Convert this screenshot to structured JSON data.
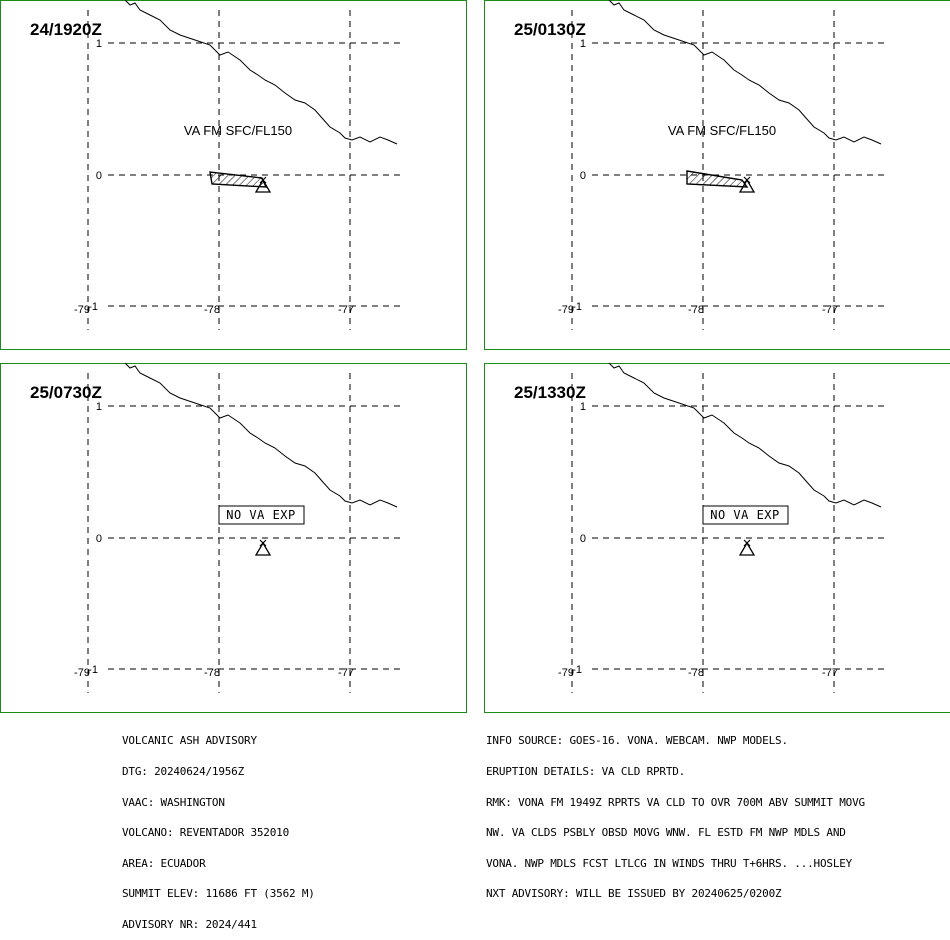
{
  "panels": [
    {
      "time": "24/1920Z",
      "label": "VA FM SFC/FL150",
      "type": "ash"
    },
    {
      "time": "25/0130Z",
      "label": "VA FM SFC/FL150",
      "type": "ash"
    },
    {
      "time": "25/0730Z",
      "label": "NO VA EXP",
      "type": "none"
    },
    {
      "time": "25/1330Z",
      "label": "NO VA EXP",
      "type": "none"
    }
  ],
  "axes": {
    "lon_ticks": [
      "-79",
      "-78",
      "-77"
    ],
    "lat_ticks": [
      "1",
      "0",
      "-1"
    ]
  },
  "advisory": {
    "lines": [
      "VOLCANIC ASH ADVISORY",
      "DTG: 20240624/1956Z",
      "VAAC: WASHINGTON",
      "VOLCANO: REVENTADOR 352010",
      "AREA: ECUADOR",
      "SUMMIT ELEV: 11686 FT (3562 M)",
      "ADVISORY NR: 2024/441"
    ]
  },
  "details": {
    "lines": [
      "INFO SOURCE: GOES-16. VONA. WEBCAM. NWP MODELS.",
      "ERUPTION DETAILS: VA CLD RPRTD.",
      "RMK: VONA FM 1949Z RPRTS VA CLD TO OVR 700M ABV SUMMIT MOVG",
      "NW. VA CLDS PSBLY OBSD MOVG WNW. FL ESTD FM NWP MDLS AND",
      "VONA. NWP MDLS FCST LTLCG IN WINDS THRU T+6HRS. ...HOSLEY",
      "NXT ADVISORY: WILL BE ISSUED BY 20240625/0200Z"
    ]
  },
  "colors": {
    "frame": "#1a8c1a",
    "ink": "#000000",
    "background": "#ffffff"
  }
}
